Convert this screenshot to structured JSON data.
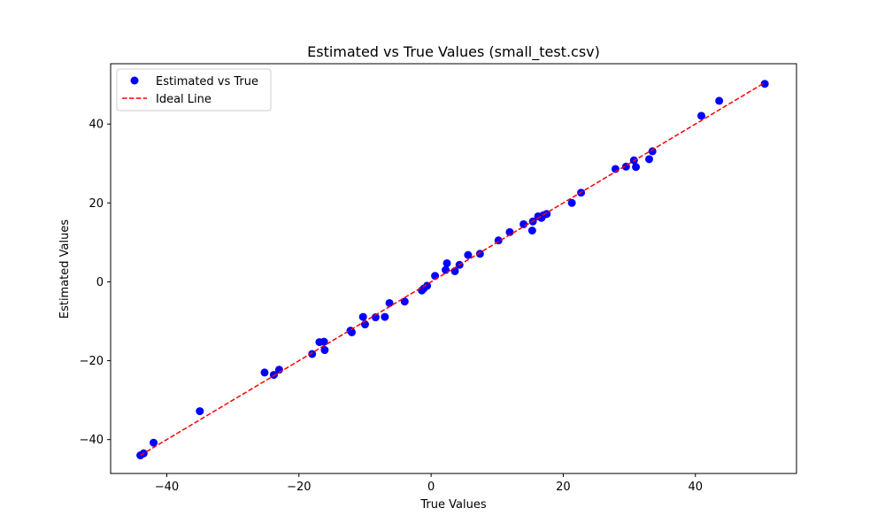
{
  "chart_data": {
    "type": "scatter",
    "title": "Estimated vs True Values (small_test.csv)",
    "xlabel": "True Values",
    "ylabel": "Estimated Values",
    "xlim": [
      -48.5,
      55.3
    ],
    "ylim": [
      -48.6,
      55.3
    ],
    "xticks": [
      -40,
      -20,
      0,
      20,
      40
    ],
    "yticks": [
      -40,
      -20,
      0,
      20,
      40
    ],
    "legend_position": "upper left",
    "colors": {
      "points": "#0000ff",
      "ideal_line": "#ff0000"
    },
    "series": [
      {
        "name": "Estimated vs True",
        "kind": "points",
        "x": [
          -44.0,
          -43.5,
          -42.0,
          -35.0,
          -25.2,
          -23.8,
          -23.0,
          -18.0,
          -16.9,
          -16.2,
          -16.1,
          -12.2,
          -12.0,
          -10.3,
          -10.0,
          -8.4,
          -7.0,
          -6.3,
          -4.0,
          -1.4,
          -1.1,
          -0.6,
          0.6,
          2.2,
          2.4,
          3.6,
          4.3,
          5.6,
          7.4,
          10.2,
          11.9,
          14.0,
          15.3,
          15.4,
          16.2,
          16.7,
          17.0,
          17.5,
          21.3,
          22.7,
          27.9,
          29.5,
          30.7,
          31.0,
          33.0,
          33.5,
          40.9,
          43.6,
          50.5
        ],
        "y": [
          -44.0,
          -43.5,
          -40.8,
          -32.8,
          -23.0,
          -23.6,
          -22.3,
          -18.3,
          -15.3,
          -15.2,
          -17.3,
          -12.4,
          -12.8,
          -8.9,
          -10.8,
          -9.0,
          -8.9,
          -5.4,
          -5.0,
          -2.2,
          -1.7,
          -1.0,
          1.5,
          3.0,
          4.7,
          2.7,
          4.3,
          6.8,
          7.1,
          10.5,
          12.6,
          14.6,
          13.0,
          15.3,
          16.6,
          16.2,
          16.9,
          17.2,
          20.0,
          22.6,
          28.6,
          29.2,
          30.8,
          29.1,
          31.1,
          33.1,
          42.1,
          45.9,
          50.2
        ]
      },
      {
        "name": "Ideal Line",
        "kind": "line",
        "x": [
          -44.0,
          50.5
        ],
        "y": [
          -44.0,
          50.5
        ]
      }
    ]
  }
}
